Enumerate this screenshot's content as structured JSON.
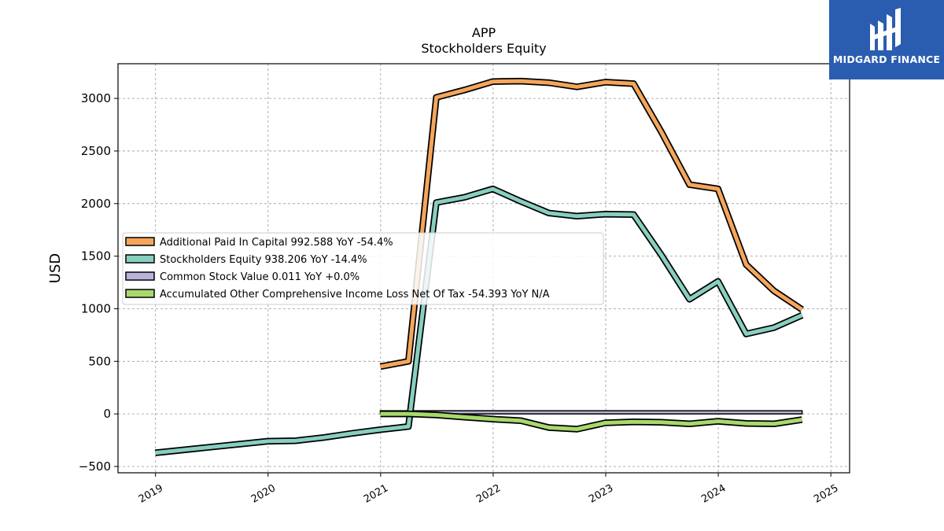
{
  "chart_data": {
    "type": "line",
    "title": "APP",
    "subtitle": "Stockholders  Equity",
    "ylabel": "USD",
    "xlabel": "",
    "x_ticks": [
      "2019",
      "2020",
      "2021",
      "2022",
      "2023",
      "2024",
      "2025"
    ],
    "y_ticks": [
      "3000",
      "2500",
      "2000",
      "1500",
      "1000",
      "500",
      "0",
      "−500"
    ],
    "ylim": [
      -560,
      3330
    ],
    "xlim": [
      "2018-09",
      "2025-03"
    ],
    "grid": true,
    "legend_position": "center-left",
    "series": [
      {
        "name": "Additional Paid In Capital  992.588 YoY -54.4%",
        "color": "#f5a65b",
        "points": [
          [
            "2020-12-31",
            450
          ],
          [
            "2021-03-31",
            500
          ],
          [
            "2021-06-30",
            3010
          ],
          [
            "2021-09-30",
            3080
          ],
          [
            "2021-12-31",
            3160
          ],
          [
            "2022-03-31",
            3165
          ],
          [
            "2022-06-30",
            3150
          ],
          [
            "2022-09-30",
            3110
          ],
          [
            "2022-12-31",
            3155
          ],
          [
            "2023-03-31",
            3140
          ],
          [
            "2023-06-30",
            2680
          ],
          [
            "2023-09-30",
            2180
          ],
          [
            "2023-12-31",
            2140
          ],
          [
            "2024-03-31",
            1420
          ],
          [
            "2024-06-30",
            1170
          ],
          [
            "2024-09-30",
            992.588
          ]
        ]
      },
      {
        "name": "Stockholders Equity  938.206 YoY -14.4%",
        "color": "#88cfc0",
        "points": [
          [
            "2018-12-31",
            -370
          ],
          [
            "2019-12-31",
            -260
          ],
          [
            "2020-03-31",
            -255
          ],
          [
            "2020-06-30",
            -225
          ],
          [
            "2020-09-30",
            -185
          ],
          [
            "2020-12-31",
            -150
          ],
          [
            "2021-03-31",
            -120
          ],
          [
            "2021-06-30",
            2010
          ],
          [
            "2021-09-30",
            2060
          ],
          [
            "2021-12-31",
            2140
          ],
          [
            "2022-03-31",
            2020
          ],
          [
            "2022-06-30",
            1910
          ],
          [
            "2022-09-30",
            1880
          ],
          [
            "2022-12-31",
            1900
          ],
          [
            "2023-03-31",
            1895
          ],
          [
            "2023-06-30",
            1510
          ],
          [
            "2023-09-30",
            1090
          ],
          [
            "2023-12-31",
            1260
          ],
          [
            "2024-03-31",
            760
          ],
          [
            "2024-06-30",
            820
          ],
          [
            "2024-09-30",
            938.206
          ]
        ]
      },
      {
        "name": "Common Stock Value  0.011 YoY +0.0%",
        "color": "#b8b4dc",
        "points": [
          [
            "2020-12-31",
            0.011
          ],
          [
            "2021-12-31",
            0.011
          ],
          [
            "2022-12-31",
            0.011
          ],
          [
            "2023-12-31",
            0.011
          ],
          [
            "2024-09-30",
            0.011
          ]
        ]
      },
      {
        "name": "Accumulated Other Comprehensive Income Loss Net Of Tax  -54.393 YoY N/A",
        "color": "#a8d96c",
        "points": [
          [
            "2020-12-31",
            0
          ],
          [
            "2021-03-31",
            0
          ],
          [
            "2021-06-30",
            -10
          ],
          [
            "2021-09-30",
            -30
          ],
          [
            "2021-12-31",
            -50
          ],
          [
            "2022-03-31",
            -65
          ],
          [
            "2022-06-30",
            -130
          ],
          [
            "2022-09-30",
            -145
          ],
          [
            "2022-12-31",
            -85
          ],
          [
            "2023-03-31",
            -75
          ],
          [
            "2023-06-30",
            -80
          ],
          [
            "2023-09-30",
            -95
          ],
          [
            "2023-12-31",
            -70
          ],
          [
            "2024-03-31",
            -90
          ],
          [
            "2024-06-30",
            -95
          ],
          [
            "2024-09-30",
            -54.393
          ]
        ]
      }
    ]
  },
  "logo": {
    "text": "MIDGARD FINANCE",
    "color": "#2a5db0"
  }
}
